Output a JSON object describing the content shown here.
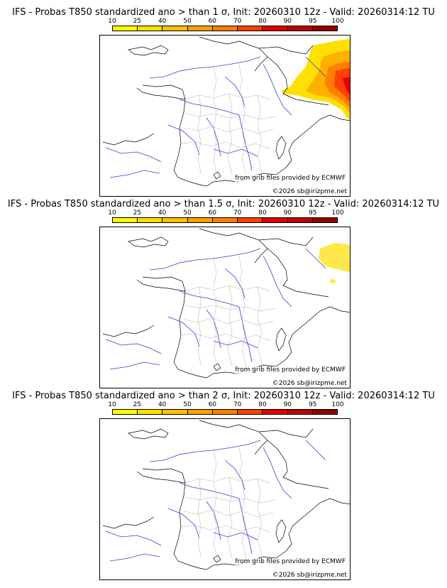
{
  "colorbar": {
    "labels": [
      "10",
      "25",
      "40",
      "50",
      "60",
      "70",
      "80",
      "90",
      "95",
      "100"
    ],
    "colors": [
      "#ffff00",
      "#ffe000",
      "#ffc000",
      "#ffa000",
      "#ff8000",
      "#ff4000",
      "#e00000",
      "#c00000",
      "#900000",
      "#600000"
    ]
  },
  "panels": [
    {
      "title": "IFS - Probas T850  standardized ano > than 1 σ, Init: 20260310 12z - Valid: 20260314:12 TU",
      "credit_source": "from grib files provided by ECMWF",
      "credit_copy": "©2026 sb@irizpme.net"
    },
    {
      "title": "IFS - Probas T850  standardized ano > than 1.5 σ, Init: 20260310 12z - Valid: 20260314:12 TU",
      "credit_source": "from grib files provided by ECMWF",
      "credit_copy": "©2026 sb@irizpme.net"
    },
    {
      "title": "IFS - Probas T850  standardized ano > than 2 σ, Init: 20260310 12z - Valid: 20260314:12 TU",
      "credit_source": "from grib files provided by ECMWF",
      "credit_copy": "©2026 sb@irizpme.net"
    }
  ]
}
